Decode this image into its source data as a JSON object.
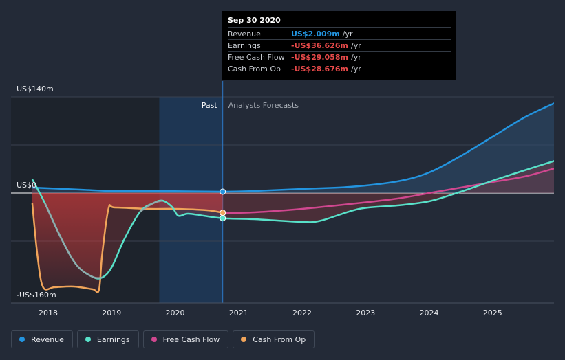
{
  "chart_data": {
    "type": "line",
    "title": "",
    "xlabel": "",
    "ylabel": "",
    "y_unit_prefix": "US$",
    "ylim": [
      -160,
      140
    ],
    "y_tick_labels": [
      {
        "value": 140,
        "label": "US$140m"
      },
      {
        "value": 0,
        "label": "US$0"
      },
      {
        "value": -160,
        "label": "-US$160m"
      }
    ],
    "x_ticks": [
      2018,
      2019,
      2020,
      2021,
      2022,
      2023,
      2024,
      2025
    ],
    "xlim": [
      2017.6,
      2025.98
    ],
    "past_label": "Past",
    "forecast_label": "Analysts Forecasts",
    "past_end": 2020.75,
    "highlight_start": 2019.75,
    "series": [
      {
        "name": "Revenue",
        "color": "#2394df",
        "x": [
          2017.75,
          2018.5,
          2019.0,
          2019.75,
          2020.75,
          2021.25,
          2022.0,
          2022.75,
          2023.5,
          2024.0,
          2024.5,
          2025.0,
          2025.5,
          2025.98
        ],
        "values": [
          8,
          5,
          3,
          3,
          2.009,
          3,
          6,
          9,
          17,
          30,
          54,
          82,
          110,
          131
        ]
      },
      {
        "name": "Earnings",
        "color": "#58e1c9",
        "x": [
          2017.75,
          2017.95,
          2018.2,
          2018.45,
          2018.7,
          2018.85,
          2019.0,
          2019.2,
          2019.45,
          2019.65,
          2019.8,
          2019.95,
          2020.05,
          2020.2,
          2020.45,
          2020.75,
          2021.25,
          2022.0,
          2022.3,
          2022.9,
          2023.5,
          2024.0,
          2024.5,
          2025.0,
          2025.5,
          2025.98
        ],
        "values": [
          20,
          -15,
          -65,
          -105,
          -122,
          -123,
          -108,
          -67,
          -27,
          -15,
          -11,
          -20,
          -33,
          -30,
          -33,
          -36.626,
          -38,
          -42,
          -40,
          -23,
          -18,
          -12,
          2,
          18,
          33,
          47
        ]
      },
      {
        "name": "Free Cash Flow",
        "color": "#d0478f",
        "x": [
          2020.75,
          2021.25,
          2022.0,
          2022.75,
          2023.5,
          2024.0,
          2024.5,
          2025.0,
          2025.5,
          2025.98
        ],
        "values": [
          -29.058,
          -28,
          -23,
          -16,
          -8,
          0,
          8,
          16,
          24,
          36
        ]
      },
      {
        "name": "Cash From Op",
        "color": "#f0a45a",
        "x": [
          2017.75,
          2017.83,
          2017.92,
          2018.1,
          2018.4,
          2018.7,
          2018.8,
          2018.85,
          2018.95,
          2019.05,
          2019.6,
          2020.0,
          2020.5,
          2020.75
        ],
        "values": [
          -15,
          -90,
          -137,
          -137,
          -136,
          -140,
          -141,
          -90,
          -23,
          -21,
          -23,
          -23,
          -25,
          -28.676
        ]
      }
    ]
  },
  "tooltip": {
    "date": "Sep 30 2020",
    "rows": [
      {
        "label": "Revenue",
        "value": "US$2.009m",
        "unit": "/yr",
        "color": "#2394df"
      },
      {
        "label": "Earnings",
        "value": "-US$36.626m",
        "unit": "/yr",
        "color": "#e84a4a"
      },
      {
        "label": "Free Cash Flow",
        "value": "-US$29.058m",
        "unit": "/yr",
        "color": "#e84a4a"
      },
      {
        "label": "Cash From Op",
        "value": "-US$28.676m",
        "unit": "/yr",
        "color": "#e84a4a"
      }
    ]
  },
  "legend": [
    {
      "label": "Revenue",
      "color": "#2394df"
    },
    {
      "label": "Earnings",
      "color": "#58e1c9"
    },
    {
      "label": "Free Cash Flow",
      "color": "#d0478f"
    },
    {
      "label": "Cash From Op",
      "color": "#f0a45a"
    }
  ]
}
